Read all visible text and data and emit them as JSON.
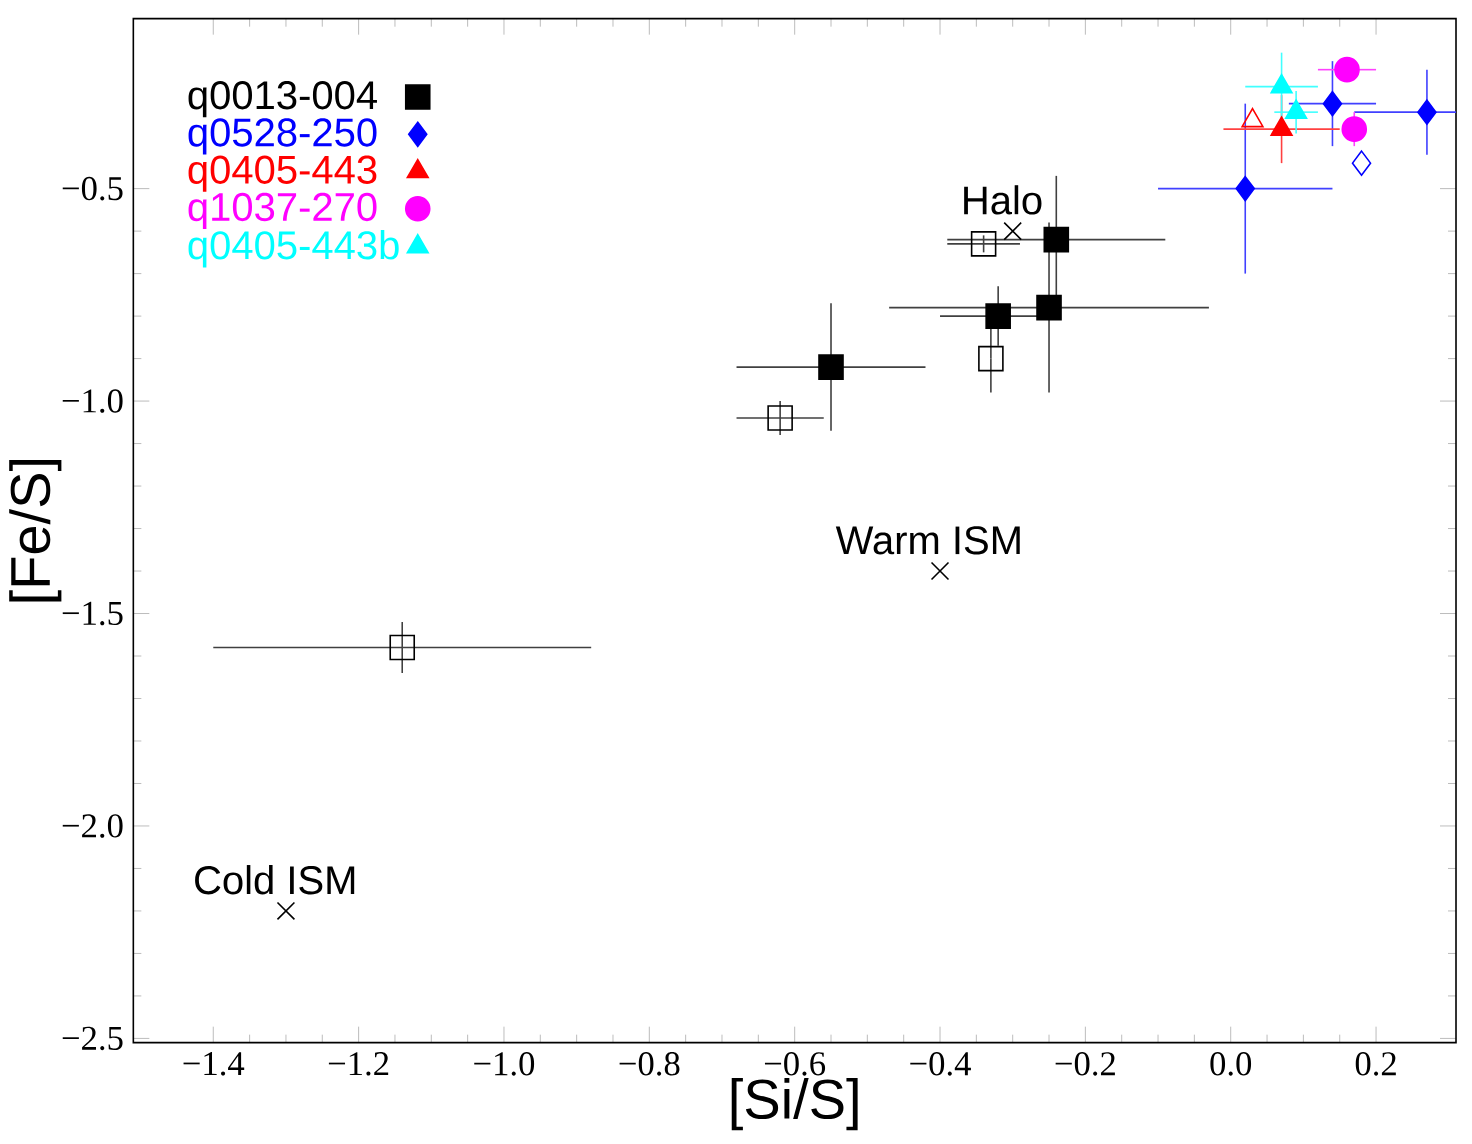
{
  "chart_data": {
    "type": "scatter",
    "xlabel": "[Si/S]",
    "ylabel": "[Fe/S]",
    "xlim": [
      -1.51,
      0.31
    ],
    "ylim": [
      -2.51,
      -0.1
    ],
    "xticks": [
      {
        "value": -1.4,
        "label": "−1.4"
      },
      {
        "value": -1.2,
        "label": "−1.2"
      },
      {
        "value": -1.0,
        "label": "−1.0"
      },
      {
        "value": -0.8,
        "label": "−0.8"
      },
      {
        "value": -0.6,
        "label": "−0.6"
      },
      {
        "value": -0.4,
        "label": "−0.4"
      },
      {
        "value": -0.2,
        "label": "−0.2"
      },
      {
        "value": 0.0,
        "label": "0.0"
      },
      {
        "value": 0.2,
        "label": "0.2"
      }
    ],
    "yticks": [
      {
        "value": -2.5,
        "label": "−2.5"
      },
      {
        "value": -2.0,
        "label": "−2.0"
      },
      {
        "value": -1.5,
        "label": "−1.5"
      },
      {
        "value": -1.0,
        "label": "−1.0"
      },
      {
        "value": -0.5,
        "label": "−0.5"
      }
    ],
    "legend": "top left",
    "series": [
      {
        "name": "q0013-004",
        "color": "#000000",
        "marker": "square",
        "x": [
          -0.24,
          -0.32,
          -0.25,
          -0.55
        ],
        "values": [
          -0.62,
          -0.8,
          -0.78,
          -0.92
        ],
        "xerrors": [
          0.15,
          0.08,
          0.22,
          0.13
        ],
        "errors": [
          0.15,
          0.07,
          0.2,
          0.15
        ]
      },
      {
        "name": "q0528-250",
        "color": "#0000ff",
        "marker": "diamond",
        "x": [
          0.02,
          0.14,
          0.27
        ],
        "values": [
          -0.5,
          -0.3,
          -0.32
        ],
        "xerrors": [
          0.12,
          0.06,
          [
            0.17,
            0.31
          ]
        ],
        "errors": [
          0.2,
          0.1,
          0.1
        ]
      },
      {
        "name": "q0405-443",
        "color": "#ff0000",
        "marker": "triangle",
        "x": [
          0.07
        ],
        "values": [
          -0.36
        ],
        "xerrors": [
          0.08
        ],
        "errors": [
          0.08
        ]
      },
      {
        "name": "q1037-270",
        "color": "#ff00ff",
        "marker": "circle",
        "x": [
          0.16,
          0.17
        ],
        "values": [
          -0.22,
          -0.36
        ],
        "xerrors": [
          0.04,
          null
        ],
        "errors": [
          null,
          0.04
        ]
      },
      {
        "name": "q0405-443b",
        "color": "#00ffff",
        "marker": "triangle",
        "x": [
          0.07,
          0.09
        ],
        "values": [
          -0.26,
          -0.32
        ],
        "xerrors": [
          0.05,
          0.03
        ],
        "errors": [
          0.08,
          0.05
        ]
      },
      {
        "color": "#000000",
        "marker": "square",
        "x": [
          -0.34,
          -0.33,
          -0.62,
          -1.14
        ],
        "values": [
          -0.63,
          -0.9,
          -1.04,
          -1.58
        ],
        "xerrors": [
          0.05,
          null,
          0.06,
          0.26
        ],
        "errors": [
          0.02,
          0.08,
          0.04,
          0.06
        ]
      },
      {
        "color": "#0000ff",
        "marker": "diamond",
        "x": [
          0.18
        ],
        "values": [
          -0.44
        ]
      },
      {
        "color": "#ff0000",
        "marker": "triangle",
        "x": [
          0.03
        ],
        "values": [
          -0.34
        ]
      },
      {
        "color": "#000000",
        "marker": "cross",
        "x": [
          -0.3,
          -0.4,
          -1.3
        ],
        "values": [
          -0.6,
          -1.4,
          -2.2
        ]
      }
    ],
    "annotations": [
      {
        "text": "Halo",
        "x": -0.3,
        "y": -0.6
      },
      {
        "text": "Warm ISM",
        "x": -0.4,
        "y": -1.4
      },
      {
        "text": "Cold ISM",
        "x": -1.3,
        "y": -2.2
      }
    ]
  }
}
